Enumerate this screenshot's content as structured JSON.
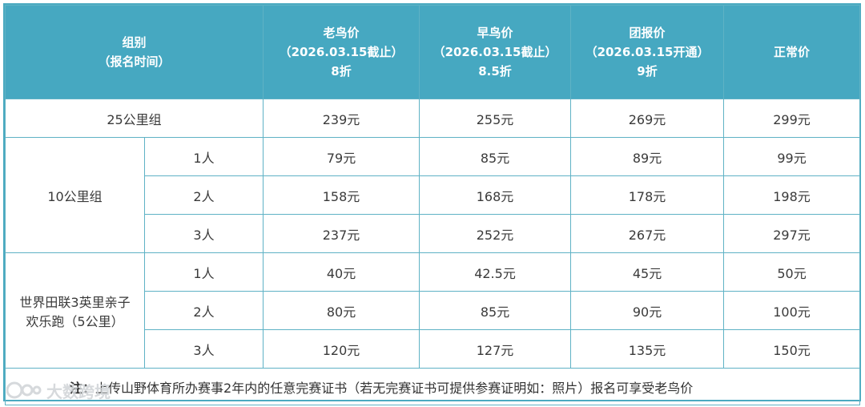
{
  "header": {
    "group": [
      "组别",
      "（报名时间）"
    ],
    "early_bird_old": [
      "老鸟价",
      "（2026.03.15截止）",
      "8折"
    ],
    "early_bird": [
      "早鸟价",
      "（2026.03.15截止）",
      "8.5折"
    ],
    "group_price": [
      "团报价",
      "（2026.03.15开通）",
      "9折"
    ],
    "normal": [
      "正常价"
    ]
  },
  "rows": {
    "km25": {
      "label": "25公里组",
      "prices": [
        "239元",
        "255元",
        "269元",
        "299元"
      ]
    },
    "km10": {
      "label": "10公里组",
      "sub": [
        {
          "people": "1人",
          "prices": [
            "79元",
            "85元",
            "89元",
            "99元"
          ]
        },
        {
          "people": "2人",
          "prices": [
            "158元",
            "168元",
            "178元",
            "198元"
          ]
        },
        {
          "people": "3人",
          "prices": [
            "237元",
            "252元",
            "267元",
            "297元"
          ]
        }
      ]
    },
    "family": {
      "label": [
        "世界田联3英里亲子",
        "欢乐跑（5公里）"
      ],
      "sub": [
        {
          "people": "1人",
          "prices": [
            "40元",
            "42.5元",
            "45元",
            "50元"
          ]
        },
        {
          "people": "2人",
          "prices": [
            "80元",
            "85元",
            "90元",
            "100元"
          ]
        },
        {
          "people": "3人",
          "prices": [
            "120元",
            "127元",
            "135元",
            "150元"
          ]
        }
      ]
    }
  },
  "note": {
    "label": "注：",
    "text": "上传山野体育所办赛事2年内的任意完赛证书（若无完赛证书可提供参赛证明如：照片）报名可享受老鸟价"
  },
  "watermark": {
    "text": "大数跨境"
  }
}
